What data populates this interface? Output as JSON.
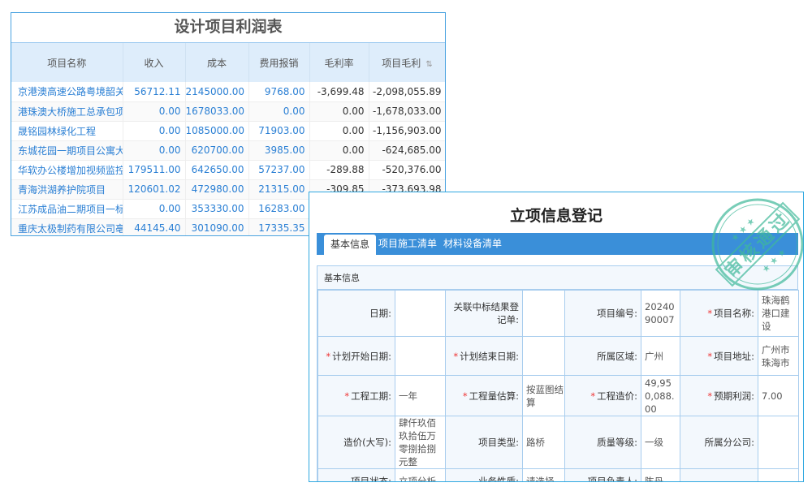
{
  "profit_table": {
    "title": "设计项目利润表",
    "columns": [
      "项目名称",
      "收入",
      "成本",
      "费用报销",
      "毛利率",
      "项目毛利"
    ],
    "rows": [
      [
        "京港澳高速公路粤境韶关至",
        "56712.11",
        "2145000.00",
        "9768.00",
        "-3,699.48",
        "-2,098,055.89"
      ],
      [
        "港珠澳大桥施工总承包项目",
        "0.00",
        "1678033.00",
        "0.00",
        "0.00",
        "-1,678,033.00"
      ],
      [
        "晟铭园林绿化工程",
        "0.00",
        "1085000.00",
        "71903.00",
        "0.00",
        "-1,156,903.00"
      ],
      [
        "东城花园一期项目公寓大堂",
        "0.00",
        "620700.00",
        "3985.00",
        "0.00",
        "-624,685.00"
      ],
      [
        "华软办公楼增加视频监控项",
        "179511.00",
        "642650.00",
        "57237.00",
        "-289.88",
        "-520,376.00"
      ],
      [
        "青海洪湖养护院项目",
        "120601.02",
        "472980.00",
        "21315.00",
        "-309.85",
        "-373,693.98"
      ],
      [
        "江苏成品油二期项目一标段",
        "0.00",
        "353330.00",
        "16283.00",
        "",
        ""
      ],
      [
        "重庆太极制药有限公司亳州",
        "44145.40",
        "301090.00",
        "17335.35",
        "",
        ""
      ]
    ],
    "sort_icon": "sort-icon"
  },
  "registration": {
    "title": "立项信息登记",
    "tabs": [
      "基本信息",
      "项目施工清单",
      "材料设备清单"
    ],
    "section_title": "基本信息",
    "stamp_text": "审核通过",
    "rows": [
      [
        {
          "label": "日期:",
          "value": ""
        },
        {
          "label": "关联中标结果登记单:",
          "value": ""
        },
        {
          "label": "项目编号:",
          "value": "2024090007"
        },
        {
          "label": "项目名称:",
          "value": "珠海鹤港口建设",
          "required": true
        }
      ],
      [
        {
          "label": "计划开始日期:",
          "value": "",
          "required": true
        },
        {
          "label": "计划结束日期:",
          "value": "",
          "required": true
        },
        {
          "label": "所属区域:",
          "value": "广州"
        },
        {
          "label": "项目地址:",
          "value": "广州市珠海市",
          "required": true
        }
      ],
      [
        {
          "label": "工程工期:",
          "value": "一年",
          "required": true
        },
        {
          "label": "工程量估算:",
          "value": "按蓝图结算",
          "required": true
        },
        {
          "label": "工程造价:",
          "value": "49,950,088.00",
          "required": true
        },
        {
          "label": "预期利润:",
          "value": "7.00",
          "required": true
        }
      ],
      [
        {
          "label": "造价(大写):",
          "value": "肆仟玖佰玖拾伍万零捌拾捌元整"
        },
        {
          "label": "项目类型:",
          "value": "路桥"
        },
        {
          "label": "质量等级:",
          "value": "一级"
        },
        {
          "label": "所属分公司:",
          "value": ""
        }
      ],
      [
        {
          "label": "项目状态:",
          "value": "立项分析"
        },
        {
          "label": "业务性质:",
          "value": "请选择"
        },
        {
          "label": "项目负责人:",
          "value": "陈丹"
        },
        {
          "label": "",
          "value": ""
        }
      ]
    ]
  },
  "colors": {
    "accent": "#3a8fd9",
    "link": "#2a7fd4",
    "stamp": "#3fb99a",
    "required": "#e33333"
  }
}
